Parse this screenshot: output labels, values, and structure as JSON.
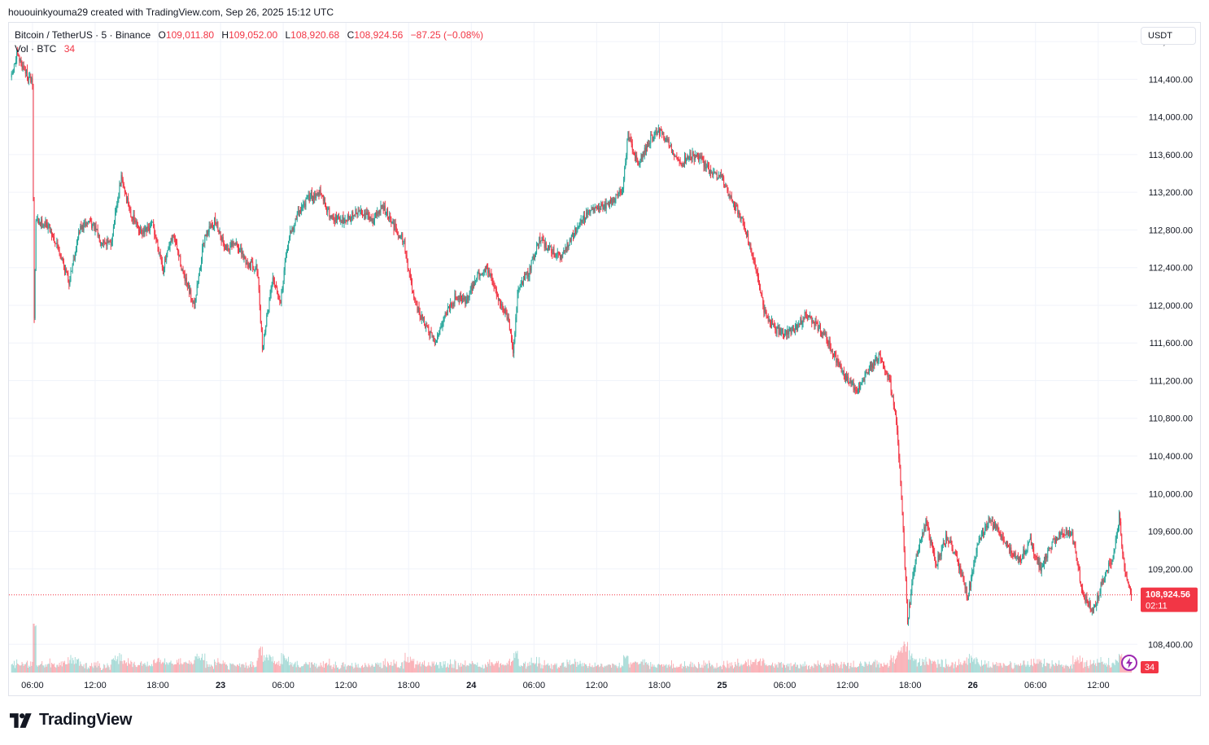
{
  "header": {
    "caption": "hououinkyouma29 created with TradingView.com, Sep 26, 2025 15:12 UTC"
  },
  "legend": {
    "symbol": "Bitcoin / TetherUS · 5 · Binance",
    "open_label": "O",
    "open": "109,011.80",
    "high_label": "H",
    "high": "109,052.00",
    "low_label": "L",
    "low": "108,920.68",
    "close_label": "C",
    "close": "108,924.56",
    "change": "−87.25 (−0.08%)",
    "volume_label": "Vol · BTC",
    "volume": "34"
  },
  "currency_button": "USDT",
  "price_tag": {
    "price": "108,924.56",
    "countdown": "02:11"
  },
  "volume_tag": "34",
  "brand": {
    "name": "TradingView"
  },
  "colors": {
    "up": "#26a69a",
    "down": "#f23645",
    "grid": "#f0f3fa",
    "axis_text": "#131722",
    "purple": "#9c27b0"
  },
  "icons": {
    "logo": "tradingview-logo-icon",
    "lightning": "lightning-icon"
  },
  "chart_data": {
    "type": "candlestick",
    "y_axis": {
      "ylim": [
        108100,
        115000
      ],
      "ticks": [
        114800,
        114400,
        114000,
        113600,
        113200,
        112800,
        112400,
        112000,
        111600,
        111200,
        110800,
        110400,
        110000,
        109600,
        109200,
        108400
      ],
      "tick_labels": [
        "114,800.00",
        "114,400.00",
        "114,000.00",
        "113,600.00",
        "113,200.00",
        "112,800.00",
        "112,400.00",
        "112,000.00",
        "111,600.00",
        "111,200.00",
        "110,800.00",
        "110,400.00",
        "110,000.00",
        "109,600.00",
        "109,200.00",
        "108,400.00"
      ]
    },
    "x_axis": {
      "xlim": [
        "2025-09-22 03:45",
        "2025-09-26 15:45"
      ],
      "ticks": [
        "2025-09-22 06:00",
        "2025-09-22 12:00",
        "2025-09-22 18:00",
        "2025-09-23 00:00",
        "2025-09-23 06:00",
        "2025-09-23 12:00",
        "2025-09-23 18:00",
        "2025-09-24 00:00",
        "2025-09-24 06:00",
        "2025-09-24 12:00",
        "2025-09-24 18:00",
        "2025-09-25 00:00",
        "2025-09-25 06:00",
        "2025-09-25 12:00",
        "2025-09-25 18:00",
        "2025-09-26 00:00",
        "2025-09-26 06:00",
        "2025-09-26 12:00"
      ],
      "tick_labels": [
        "06:00",
        "12:00",
        "18:00",
        "23",
        "06:00",
        "12:00",
        "18:00",
        "24",
        "06:00",
        "12:00",
        "18:00",
        "25",
        "06:00",
        "12:00",
        "18:00",
        "26",
        "06:00",
        "12:00"
      ],
      "bold_ticks": [
        "23",
        "24",
        "25",
        "26"
      ]
    },
    "price_path": [
      [
        "2025-09-22 04:00",
        114420
      ],
      [
        "2025-09-22 04:30",
        114650
      ],
      [
        "2025-09-22 05:30",
        114450
      ],
      [
        "2025-09-22 06:00",
        114350
      ],
      [
        "2025-09-22 06:10",
        111850
      ],
      [
        "2025-09-22 06:20",
        112900
      ],
      [
        "2025-09-22 07:30",
        112850
      ],
      [
        "2025-09-22 08:30",
        112600
      ],
      [
        "2025-09-22 09:30",
        112250
      ],
      [
        "2025-09-22 10:30",
        112800
      ],
      [
        "2025-09-22 11:30",
        112900
      ],
      [
        "2025-09-22 12:30",
        112700
      ],
      [
        "2025-09-22 13:30",
        112650
      ],
      [
        "2025-09-22 14:30",
        113350
      ],
      [
        "2025-09-22 15:30",
        112950
      ],
      [
        "2025-09-22 16:30",
        112750
      ],
      [
        "2025-09-22 17:30",
        112850
      ],
      [
        "2025-09-22 18:30",
        112400
      ],
      [
        "2025-09-22 19:30",
        112750
      ],
      [
        "2025-09-22 20:30",
        112300
      ],
      [
        "2025-09-22 21:30",
        112000
      ],
      [
        "2025-09-22 22:30",
        112750
      ],
      [
        "2025-09-22 23:30",
        112900
      ],
      [
        "2025-09-23 00:30",
        112600
      ],
      [
        "2025-09-23 01:30",
        112650
      ],
      [
        "2025-09-23 02:30",
        112450
      ],
      [
        "2025-09-23 03:30",
        112400
      ],
      [
        "2025-09-23 04:00",
        111550
      ],
      [
        "2025-09-23 05:00",
        112300
      ],
      [
        "2025-09-23 05:45",
        112050
      ],
      [
        "2025-09-23 06:30",
        112700
      ],
      [
        "2025-09-23 07:30",
        113000
      ],
      [
        "2025-09-23 08:30",
        113150
      ],
      [
        "2025-09-23 09:30",
        113200
      ],
      [
        "2025-09-23 10:30",
        112950
      ],
      [
        "2025-09-23 11:30",
        112900
      ],
      [
        "2025-09-23 12:30",
        112950
      ],
      [
        "2025-09-23 13:30",
        113000
      ],
      [
        "2025-09-23 14:30",
        112900
      ],
      [
        "2025-09-23 15:30",
        113050
      ],
      [
        "2025-09-23 16:30",
        112850
      ],
      [
        "2025-09-23 17:30",
        112700
      ],
      [
        "2025-09-23 18:30",
        112050
      ],
      [
        "2025-09-23 19:30",
        111800
      ],
      [
        "2025-09-23 20:30",
        111600
      ],
      [
        "2025-09-23 21:30",
        111900
      ],
      [
        "2025-09-23 22:30",
        112100
      ],
      [
        "2025-09-23 23:30",
        112050
      ],
      [
        "2025-09-24 00:30",
        112300
      ],
      [
        "2025-09-24 01:30",
        112400
      ],
      [
        "2025-09-24 02:30",
        112100
      ],
      [
        "2025-09-24 03:30",
        111850
      ],
      [
        "2025-09-24 04:00",
        111500
      ],
      [
        "2025-09-24 04:30",
        112200
      ],
      [
        "2025-09-24 05:30",
        112350
      ],
      [
        "2025-09-24 06:30",
        112700
      ],
      [
        "2025-09-24 07:30",
        112600
      ],
      [
        "2025-09-24 08:30",
        112500
      ],
      [
        "2025-09-24 09:30",
        112700
      ],
      [
        "2025-09-24 10:30",
        112900
      ],
      [
        "2025-09-24 11:30",
        113000
      ],
      [
        "2025-09-24 12:30",
        113050
      ],
      [
        "2025-09-24 13:30",
        113100
      ],
      [
        "2025-09-24 14:30",
        113250
      ],
      [
        "2025-09-24 15:00",
        113800
      ],
      [
        "2025-09-24 16:00",
        113500
      ],
      [
        "2025-09-24 17:00",
        113750
      ],
      [
        "2025-09-24 18:00",
        113850
      ],
      [
        "2025-09-24 19:00",
        113700
      ],
      [
        "2025-09-24 20:00",
        113500
      ],
      [
        "2025-09-24 21:00",
        113600
      ],
      [
        "2025-09-24 22:00",
        113550
      ],
      [
        "2025-09-24 23:00",
        113400
      ],
      [
        "2025-09-25 00:00",
        113350
      ],
      [
        "2025-09-25 01:00",
        113100
      ],
      [
        "2025-09-25 02:00",
        112900
      ],
      [
        "2025-09-25 03:00",
        112500
      ],
      [
        "2025-09-25 04:00",
        111950
      ],
      [
        "2025-09-25 05:00",
        111750
      ],
      [
        "2025-09-25 06:00",
        111700
      ],
      [
        "2025-09-25 07:00",
        111750
      ],
      [
        "2025-09-25 08:00",
        111900
      ],
      [
        "2025-09-25 09:00",
        111800
      ],
      [
        "2025-09-25 10:00",
        111650
      ],
      [
        "2025-09-25 11:00",
        111400
      ],
      [
        "2025-09-25 12:00",
        111200
      ],
      [
        "2025-09-25 13:00",
        111100
      ],
      [
        "2025-09-25 14:00",
        111300
      ],
      [
        "2025-09-25 15:00",
        111450
      ],
      [
        "2025-09-25 16:00",
        111250
      ],
      [
        "2025-09-25 16:45",
        110700
      ],
      [
        "2025-09-25 17:15",
        109800
      ],
      [
        "2025-09-25 17:45",
        108650
      ],
      [
        "2025-09-25 18:30",
        109300
      ],
      [
        "2025-09-25 19:30",
        109700
      ],
      [
        "2025-09-25 20:30",
        109250
      ],
      [
        "2025-09-25 21:30",
        109550
      ],
      [
        "2025-09-25 22:30",
        109300
      ],
      [
        "2025-09-25 23:30",
        108900
      ],
      [
        "2025-09-26 00:30",
        109500
      ],
      [
        "2025-09-26 01:30",
        109700
      ],
      [
        "2025-09-26 02:30",
        109600
      ],
      [
        "2025-09-26 03:30",
        109400
      ],
      [
        "2025-09-26 04:30",
        109300
      ],
      [
        "2025-09-26 05:30",
        109500
      ],
      [
        "2025-09-26 06:30",
        109200
      ],
      [
        "2025-09-26 07:30",
        109450
      ],
      [
        "2025-09-26 08:30",
        109600
      ],
      [
        "2025-09-26 09:30",
        109550
      ],
      [
        "2025-09-26 10:30",
        108950
      ],
      [
        "2025-09-26 11:30",
        108750
      ],
      [
        "2025-09-26 12:30",
        109100
      ],
      [
        "2025-09-26 13:30",
        109350
      ],
      [
        "2025-09-26 14:00",
        109750
      ],
      [
        "2025-09-26 14:30",
        109200
      ],
      [
        "2025-09-26 15:10",
        108925
      ]
    ],
    "last_price": 108924.56
  }
}
